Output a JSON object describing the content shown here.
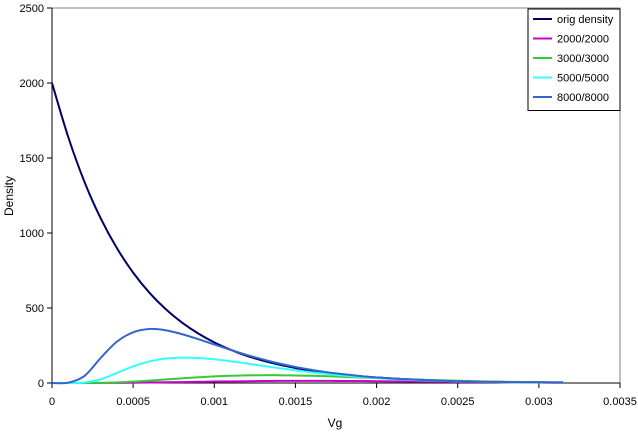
{
  "chart_data": {
    "type": "line",
    "title": "",
    "xlabel": "Vg",
    "ylabel": "Density",
    "xlim": [
      0,
      0.0035
    ],
    "ylim": [
      0,
      2500
    ],
    "xticks": [
      "0",
      "0.0005",
      "0.001",
      "0.0015",
      "0.002",
      "0.0025",
      "0.003",
      "0.0035"
    ],
    "yticks": [
      "0",
      "500",
      "1000",
      "1500",
      "2000",
      "2500"
    ],
    "grid": false,
    "legend_position": "top-right",
    "x": [
      0,
      0.0001,
      0.0002,
      0.0003,
      0.0004,
      0.0005,
      0.0006,
      0.0007,
      0.0008,
      0.0009,
      0.001,
      0.0011,
      0.0012,
      0.0013,
      0.0014,
      0.0015,
      0.0016,
      0.0017,
      0.0018,
      0.0019,
      0.002,
      0.0021,
      0.0022,
      0.0023,
      0.0024,
      0.0025,
      0.0026,
      0.0027,
      0.0028,
      0.0029,
      0.003,
      0.0031,
      0.00315
    ],
    "series": [
      {
        "name": "orig density",
        "color": "#000066",
        "values": [
          2000,
          1640,
          1341,
          1098,
          899,
          736,
          602,
          493,
          404,
          331,
          271,
          222,
          181,
          149,
          122,
          100,
          81,
          67,
          55,
          45,
          37,
          30,
          24,
          20,
          16,
          13,
          11,
          9,
          7,
          6,
          5,
          4,
          4
        ]
      },
      {
        "name": "2000/2000",
        "color": "#cc00cc",
        "values": [
          0,
          0,
          0,
          0.3,
          1,
          2,
          3,
          5,
          6,
          8,
          10,
          11,
          12,
          13,
          14,
          14,
          14,
          14,
          13,
          13,
          12,
          11,
          10,
          9,
          8,
          7,
          6,
          5,
          4,
          3,
          3,
          2,
          2
        ]
      },
      {
        "name": "3000/3000",
        "color": "#33cc33",
        "values": [
          0,
          0,
          0,
          1,
          4,
          9,
          16,
          23,
          31,
          38,
          44,
          48,
          51,
          52,
          52,
          50,
          48,
          45,
          41,
          37,
          33,
          29,
          25,
          21,
          18,
          15,
          12,
          10,
          8,
          7,
          5,
          4,
          4
        ]
      },
      {
        "name": "5000/5000",
        "color": "#33ffff",
        "values": [
          0,
          0,
          3,
          25,
          67,
          111,
          144,
          163,
          169,
          167,
          158,
          145,
          130,
          114,
          99,
          84,
          71,
          59,
          49,
          40,
          33,
          26,
          21,
          17,
          14,
          11,
          9,
          7,
          5,
          4,
          3,
          3,
          2
        ]
      },
      {
        "name": "8000/8000",
        "color": "#3366cc",
        "values": [
          0,
          2,
          47,
          167,
          276,
          338,
          360,
          352,
          326,
          293,
          257,
          221,
          187,
          157,
          130,
          107,
          88,
          71,
          58,
          46,
          37,
          30,
          24,
          19,
          15,
          12,
          9,
          7,
          6,
          5,
          4,
          3,
          3
        ]
      }
    ]
  }
}
